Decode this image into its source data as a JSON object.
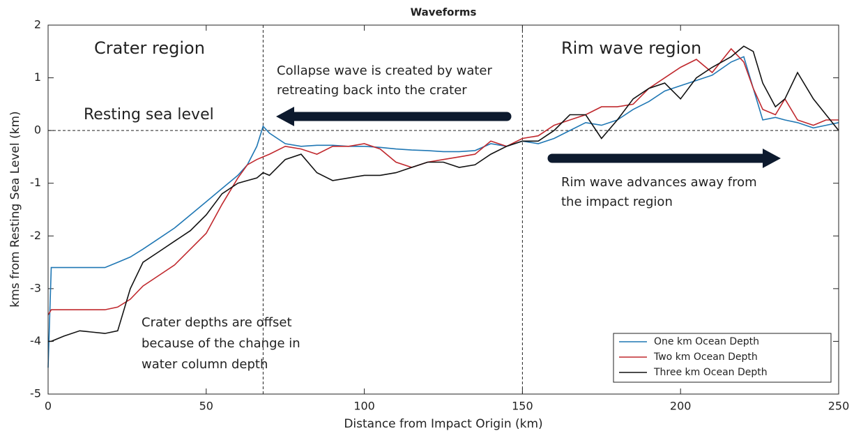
{
  "chart_data": {
    "type": "line",
    "title": "Waveforms",
    "xlabel": "Distance from Impact Origin (km)",
    "ylabel": "kms from Resting Sea Level (km)",
    "x": [
      0,
      1,
      5,
      10,
      18,
      22,
      26,
      30,
      35,
      40,
      45,
      50,
      55,
      60,
      63,
      66,
      68,
      70,
      75,
      80,
      85,
      90,
      95,
      100,
      105,
      110,
      115,
      120,
      125,
      130,
      135,
      140,
      145,
      150,
      155,
      160,
      165,
      170,
      175,
      180,
      185,
      190,
      195,
      200,
      205,
      210,
      216,
      220,
      223,
      226,
      230,
      233,
      237,
      242,
      246,
      250
    ],
    "series": [
      {
        "name": "One km Ocean Depth",
        "color": "#1f77b4",
        "values": [
          -4.5,
          -2.6,
          -2.6,
          -2.6,
          -2.6,
          -2.5,
          -2.4,
          -2.25,
          -2.05,
          -1.85,
          -1.6,
          -1.35,
          -1.1,
          -0.85,
          -0.65,
          -0.3,
          0.08,
          -0.05,
          -0.25,
          -0.3,
          -0.28,
          -0.28,
          -0.3,
          -0.3,
          -0.32,
          -0.35,
          -0.37,
          -0.38,
          -0.4,
          -0.4,
          -0.38,
          -0.25,
          -0.3,
          -0.2,
          -0.25,
          -0.15,
          0.0,
          0.15,
          0.1,
          0.2,
          0.4,
          0.55,
          0.75,
          0.85,
          0.95,
          1.05,
          1.3,
          1.4,
          0.8,
          0.2,
          0.25,
          0.2,
          0.15,
          0.05,
          0.1,
          0.15
        ]
      },
      {
        "name": "Two km Ocean Depth",
        "color": "#c0282d",
        "values": [
          -3.5,
          -3.4,
          -3.4,
          -3.4,
          -3.4,
          -3.35,
          -3.2,
          -2.95,
          -2.75,
          -2.55,
          -2.25,
          -1.95,
          -1.4,
          -0.9,
          -0.65,
          -0.55,
          -0.5,
          -0.45,
          -0.3,
          -0.35,
          -0.45,
          -0.3,
          -0.3,
          -0.25,
          -0.35,
          -0.6,
          -0.7,
          -0.6,
          -0.55,
          -0.5,
          -0.45,
          -0.2,
          -0.3,
          -0.15,
          -0.1,
          0.1,
          0.2,
          0.3,
          0.45,
          0.45,
          0.5,
          0.8,
          1.0,
          1.2,
          1.35,
          1.1,
          1.55,
          1.3,
          0.8,
          0.4,
          0.3,
          0.6,
          0.2,
          0.1,
          0.2,
          0.2
        ]
      },
      {
        "name": "Three km Ocean Depth",
        "color": "#111111",
        "values": [
          -4.0,
          -4.0,
          -3.9,
          -3.8,
          -3.85,
          -3.8,
          -3.0,
          -2.5,
          -2.3,
          -2.1,
          -1.9,
          -1.6,
          -1.2,
          -1.0,
          -0.95,
          -0.9,
          -0.8,
          -0.85,
          -0.55,
          -0.45,
          -0.8,
          -0.95,
          -0.9,
          -0.85,
          -0.85,
          -0.8,
          -0.7,
          -0.6,
          -0.6,
          -0.7,
          -0.65,
          -0.45,
          -0.3,
          -0.2,
          -0.2,
          0.0,
          0.3,
          0.3,
          -0.15,
          0.2,
          0.6,
          0.8,
          0.9,
          0.6,
          1.0,
          1.2,
          1.4,
          1.6,
          1.5,
          0.9,
          0.45,
          0.6,
          1.1,
          0.6,
          0.3,
          0.0
        ]
      }
    ],
    "xlim": [
      0,
      250
    ],
    "xticks": [
      0,
      50,
      100,
      150,
      200,
      250
    ],
    "ylim": [
      -5,
      2
    ],
    "yticks": [
      -5,
      -4,
      -3,
      -2,
      -1,
      0,
      1,
      2
    ],
    "vlines": [
      68,
      150
    ],
    "hline": 0,
    "legend": "lower right",
    "annotations": [
      [
        "Crater region"
      ],
      [
        "Rim wave region"
      ],
      [
        "Collapse wave is created by water",
        "retreating back into the crater"
      ],
      [
        "Resting sea level"
      ],
      [
        "Rim wave advances away from",
        "the impact region"
      ],
      [
        "Crater depths are offset",
        "because of the change in",
        "water column depth"
      ]
    ]
  }
}
